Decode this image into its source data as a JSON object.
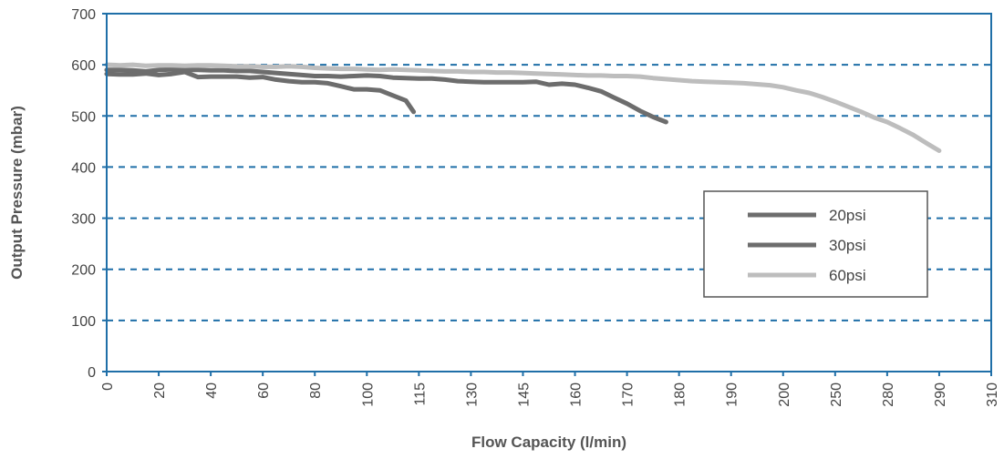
{
  "chart_data": {
    "type": "line",
    "xlabel": "Flow Capacity (l/min)",
    "ylabel": "Output Pressure (mbar)",
    "ylim": [
      0,
      700
    ],
    "yticks": [
      "0",
      "100",
      "200",
      "300",
      "400",
      "500",
      "600",
      "700"
    ],
    "categories": [
      "0",
      "20",
      "40",
      "60",
      "80",
      "100",
      "115",
      "130",
      "145",
      "160",
      "170",
      "180",
      "190",
      "200",
      "250",
      "280",
      "290",
      "310"
    ],
    "grid": "horizontal-dashed",
    "legend_position": "right",
    "series": [
      {
        "name": "20psi",
        "color": "#6d6d6d",
        "points": [
          [
            0,
            582
          ],
          [
            0.25,
            581
          ],
          [
            0.5,
            581
          ],
          [
            0.75,
            583
          ],
          [
            1,
            580
          ],
          [
            1.25,
            582
          ],
          [
            1.5,
            586
          ],
          [
            1.75,
            576
          ],
          [
            2,
            577
          ],
          [
            2.25,
            577
          ],
          [
            2.5,
            577
          ],
          [
            2.75,
            575
          ],
          [
            3,
            576
          ],
          [
            3.25,
            571
          ],
          [
            3.5,
            568
          ],
          [
            3.75,
            566
          ],
          [
            4,
            566
          ],
          [
            4.25,
            564
          ],
          [
            4.5,
            558
          ],
          [
            4.75,
            552
          ],
          [
            5,
            552
          ],
          [
            5.25,
            550
          ],
          [
            5.5,
            540
          ],
          [
            5.75,
            530
          ],
          [
            5.9,
            508
          ]
        ]
      },
      {
        "name": "30psi",
        "color": "#6d6d6d",
        "points": [
          [
            0,
            590
          ],
          [
            0.25,
            590
          ],
          [
            0.5,
            589
          ],
          [
            0.75,
            587
          ],
          [
            1,
            590
          ],
          [
            1.25,
            591
          ],
          [
            1.5,
            590
          ],
          [
            1.75,
            590
          ],
          [
            2,
            589
          ],
          [
            2.25,
            589
          ],
          [
            2.5,
            588
          ],
          [
            2.75,
            588
          ],
          [
            3,
            586
          ],
          [
            3.25,
            584
          ],
          [
            3.5,
            582
          ],
          [
            3.75,
            580
          ],
          [
            4,
            578
          ],
          [
            4.25,
            578
          ],
          [
            4.5,
            577
          ],
          [
            4.75,
            578
          ],
          [
            5,
            579
          ],
          [
            5.25,
            578
          ],
          [
            5.5,
            575
          ],
          [
            5.75,
            574
          ],
          [
            6,
            573
          ],
          [
            6.25,
            573
          ],
          [
            6.5,
            571
          ],
          [
            6.75,
            568
          ],
          [
            7,
            567
          ],
          [
            7.25,
            566
          ],
          [
            7.5,
            566
          ],
          [
            7.75,
            566
          ],
          [
            8,
            566
          ],
          [
            8.25,
            567
          ],
          [
            8.5,
            561
          ],
          [
            8.75,
            563
          ],
          [
            9,
            561
          ],
          [
            9.25,
            555
          ],
          [
            9.5,
            548
          ],
          [
            9.75,
            536
          ],
          [
            10,
            524
          ],
          [
            10.25,
            510
          ],
          [
            10.5,
            498
          ],
          [
            10.75,
            488
          ]
        ]
      },
      {
        "name": "60psi",
        "color": "#bdbdbd",
        "points": [
          [
            0,
            600
          ],
          [
            0.25,
            599
          ],
          [
            0.5,
            600
          ],
          [
            0.75,
            598
          ],
          [
            1,
            599
          ],
          [
            1.25,
            599
          ],
          [
            1.5,
            598
          ],
          [
            1.75,
            599
          ],
          [
            2,
            599
          ],
          [
            2.25,
            598
          ],
          [
            2.5,
            597
          ],
          [
            2.75,
            597
          ],
          [
            3,
            596
          ],
          [
            3.25,
            596
          ],
          [
            3.5,
            597
          ],
          [
            3.75,
            596
          ],
          [
            4,
            594
          ],
          [
            4.25,
            593
          ],
          [
            4.5,
            592
          ],
          [
            4.75,
            592
          ],
          [
            5,
            591
          ],
          [
            5.25,
            590
          ],
          [
            5.5,
            591
          ],
          [
            5.75,
            590
          ],
          [
            6,
            589
          ],
          [
            6.25,
            588
          ],
          [
            6.5,
            587
          ],
          [
            6.75,
            587
          ],
          [
            7,
            586
          ],
          [
            7.25,
            586
          ],
          [
            7.5,
            585
          ],
          [
            7.75,
            585
          ],
          [
            8,
            584
          ],
          [
            8.25,
            583
          ],
          [
            8.5,
            582
          ],
          [
            8.75,
            581
          ],
          [
            9,
            580
          ],
          [
            9.25,
            579
          ],
          [
            9.5,
            579
          ],
          [
            9.75,
            578
          ],
          [
            10,
            578
          ],
          [
            10.25,
            577
          ],
          [
            10.5,
            574
          ],
          [
            10.75,
            572
          ],
          [
            11,
            570
          ],
          [
            11.25,
            568
          ],
          [
            11.5,
            567
          ],
          [
            11.75,
            566
          ],
          [
            12,
            565
          ],
          [
            12.25,
            564
          ],
          [
            12.5,
            562
          ],
          [
            12.75,
            560
          ],
          [
            13,
            556
          ],
          [
            13.25,
            550
          ],
          [
            13.5,
            545
          ],
          [
            13.75,
            537
          ],
          [
            14,
            528
          ],
          [
            14.25,
            518
          ],
          [
            14.5,
            508
          ],
          [
            14.75,
            497
          ],
          [
            15,
            488
          ],
          [
            15.25,
            476
          ],
          [
            15.5,
            463
          ],
          [
            15.75,
            447
          ],
          [
            16,
            432
          ]
        ]
      }
    ]
  }
}
